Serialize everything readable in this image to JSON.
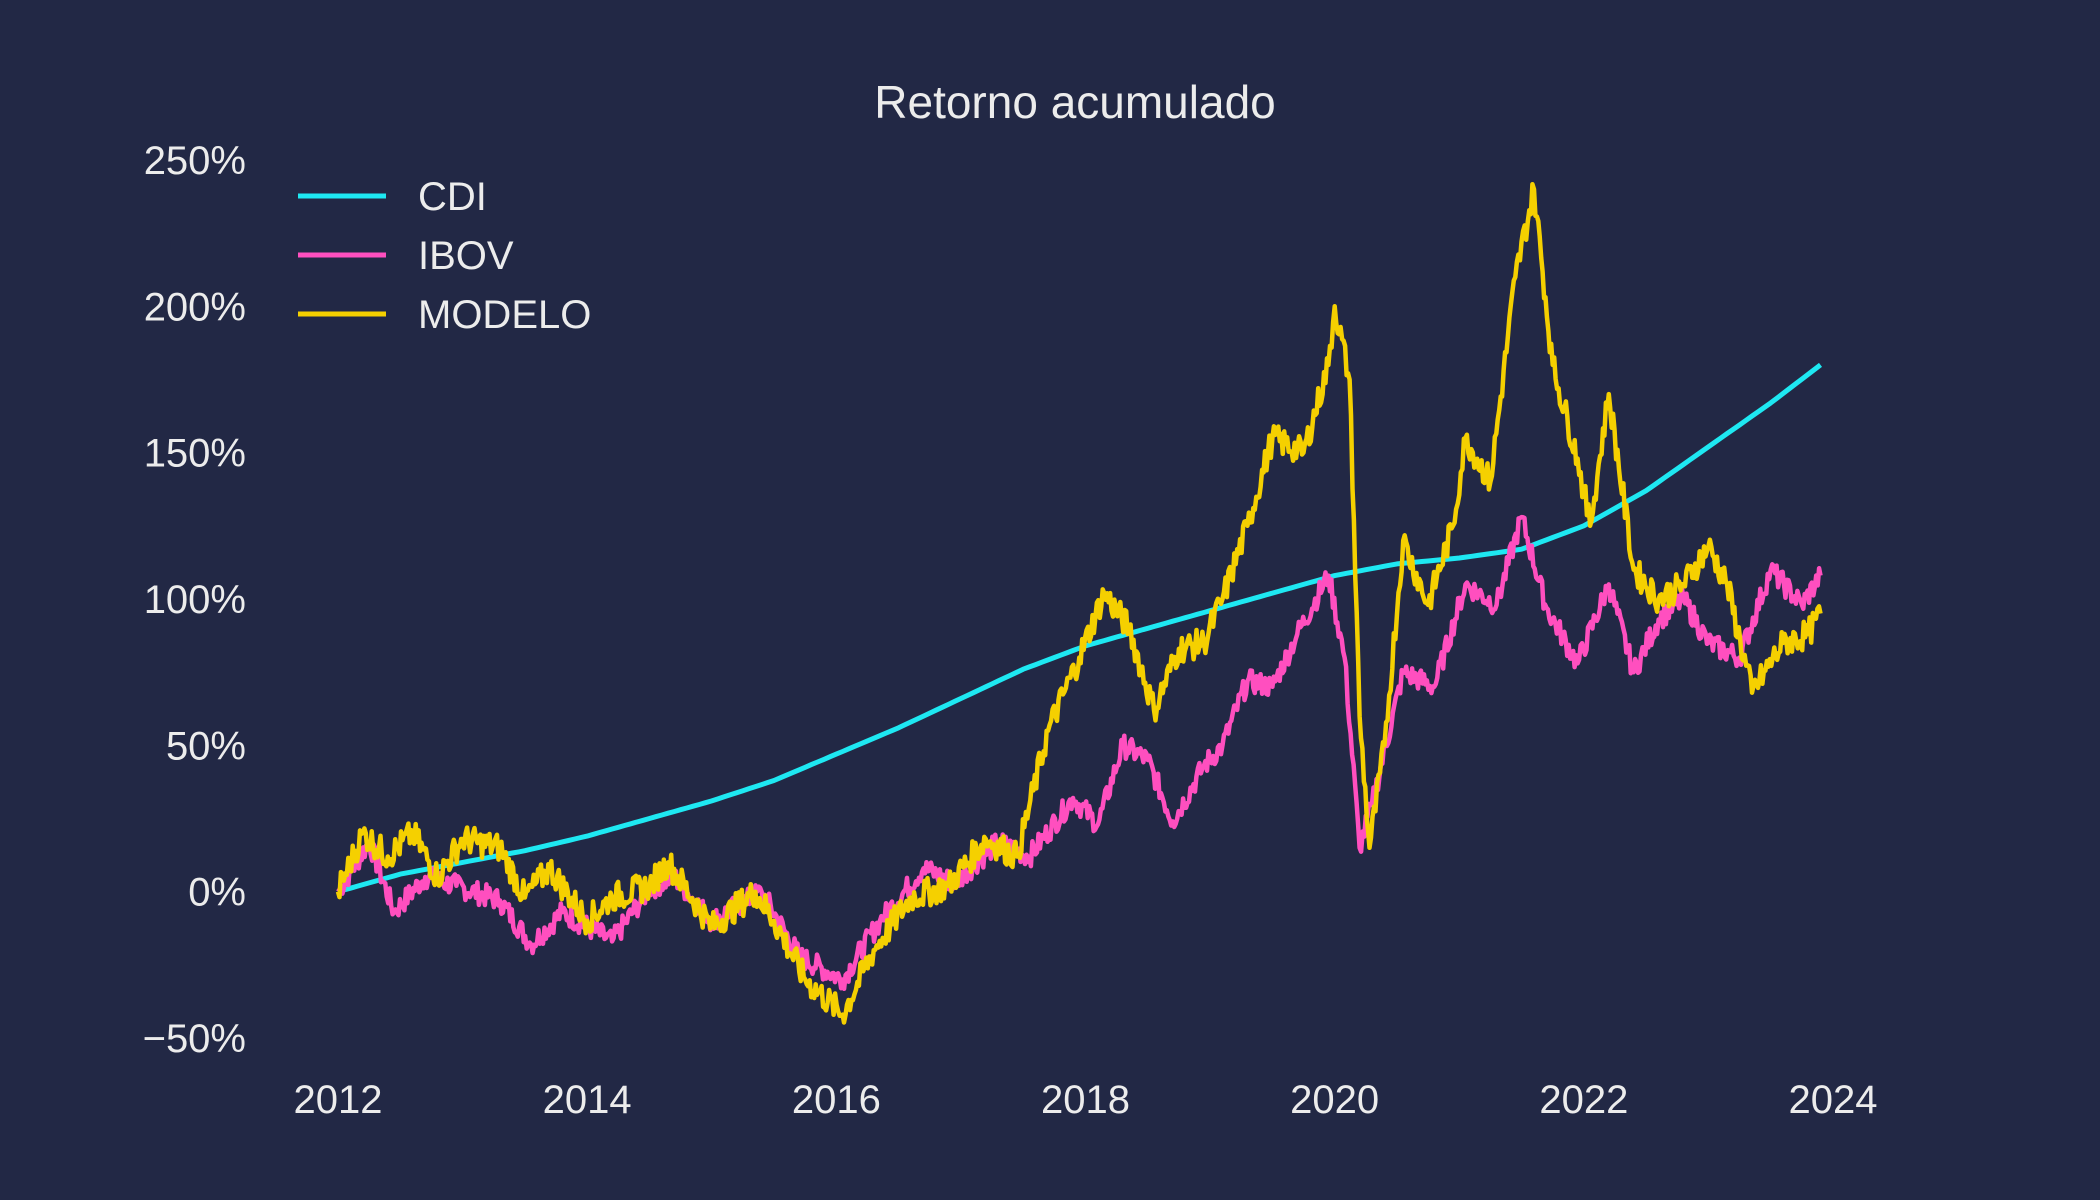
{
  "chart_data": {
    "type": "line",
    "title": "Retorno acumulado",
    "xlabel": "",
    "ylabel": "",
    "xlim": [
      2012.0,
      2024.0
    ],
    "ylim": [
      -50,
      250
    ],
    "grid": false,
    "legend_position": "top-left",
    "x_ticks": [
      2012,
      2014,
      2016,
      2018,
      2020,
      2022,
      2024
    ],
    "x_tick_labels": [
      "2012",
      "2014",
      "2016",
      "2018",
      "2020",
      "2022",
      "2024"
    ],
    "y_ticks": [
      -50,
      0,
      50,
      100,
      150,
      200,
      250
    ],
    "y_tick_labels": [
      "−50%",
      "0%",
      "50%",
      "100%",
      "150%",
      "200%",
      "250%"
    ],
    "series": [
      {
        "name": "CDI",
        "color": "#1EE8F2",
        "x": [
          2012.0,
          2012.5,
          2013.0,
          2013.5,
          2014.0,
          2014.5,
          2015.0,
          2015.5,
          2016.0,
          2016.5,
          2017.0,
          2017.5,
          2018.0,
          2018.5,
          2019.0,
          2019.5,
          2020.0,
          2020.5,
          2021.0,
          2021.5,
          2022.0,
          2022.5,
          2023.0,
          2023.5,
          2023.9
        ],
        "values": [
          0,
          6,
          10,
          14,
          19,
          25,
          31,
          38,
          47,
          56,
          66,
          76,
          84,
          90,
          96,
          102,
          108,
          112,
          114,
          117,
          125,
          137,
          152,
          167,
          180
        ]
      },
      {
        "name": "IBOV",
        "color": "#FF4FBF",
        "x": [
          2012.0,
          2012.25,
          2012.45,
          2012.7,
          2012.95,
          2013.3,
          2013.55,
          2013.8,
          2014.2,
          2014.5,
          2014.7,
          2015.0,
          2015.4,
          2015.7,
          2016.05,
          2016.35,
          2016.7,
          2016.95,
          2017.3,
          2017.55,
          2017.9,
          2018.1,
          2018.3,
          2018.5,
          2018.7,
          2018.95,
          2019.1,
          2019.3,
          2019.5,
          2019.7,
          2019.95,
          2020.08,
          2020.2,
          2020.3,
          2020.55,
          2020.8,
          2021.05,
          2021.3,
          2021.5,
          2021.7,
          2021.95,
          2022.2,
          2022.4,
          2022.6,
          2022.8,
          2023.0,
          2023.25,
          2023.5,
          2023.75,
          2023.9
        ],
        "values": [
          0,
          17,
          -7,
          5,
          2,
          -3,
          -18,
          -7,
          -17,
          1,
          5,
          -10,
          0,
          -22,
          -30,
          -10,
          8,
          3,
          17,
          12,
          32,
          23,
          50,
          45,
          24,
          43,
          50,
          72,
          70,
          88,
          108,
          80,
          15,
          30,
          75,
          70,
          105,
          98,
          128,
          97,
          78,
          105,
          75,
          93,
          100,
          85,
          80,
          110,
          98,
          108
        ]
      },
      {
        "name": "MODELO",
        "color": "#F5D000",
        "x": [
          2012.0,
          2012.2,
          2012.4,
          2012.6,
          2012.8,
          2013.0,
          2013.3,
          2013.5,
          2013.7,
          2014.0,
          2014.2,
          2014.5,
          2014.65,
          2015.0,
          2015.35,
          2015.5,
          2015.75,
          2016.05,
          2016.3,
          2016.6,
          2016.9,
          2017.2,
          2017.45,
          2017.7,
          2017.95,
          2018.15,
          2018.35,
          2018.55,
          2018.75,
          2018.95,
          2019.1,
          2019.3,
          2019.5,
          2019.75,
          2019.95,
          2020.0,
          2020.12,
          2020.2,
          2020.28,
          2020.4,
          2020.55,
          2020.75,
          2020.95,
          2021.05,
          2021.25,
          2021.45,
          2021.6,
          2021.75,
          2021.95,
          2022.05,
          2022.2,
          2022.4,
          2022.6,
          2022.8,
          2023.0,
          2023.15,
          2023.35,
          2023.6,
          2023.8,
          2023.9
        ],
        "values": [
          0,
          20,
          12,
          20,
          5,
          18,
          15,
          -2,
          8,
          -10,
          -2,
          2,
          10,
          -12,
          0,
          -10,
          -30,
          -42,
          -20,
          -2,
          2,
          18,
          12,
          55,
          80,
          102,
          90,
          62,
          83,
          85,
          100,
          125,
          155,
          150,
          180,
          200,
          175,
          60,
          15,
          50,
          120,
          98,
          125,
          155,
          140,
          210,
          240,
          180,
          148,
          125,
          170,
          110,
          100,
          105,
          118,
          105,
          68,
          85,
          88,
          95
        ]
      }
    ]
  }
}
